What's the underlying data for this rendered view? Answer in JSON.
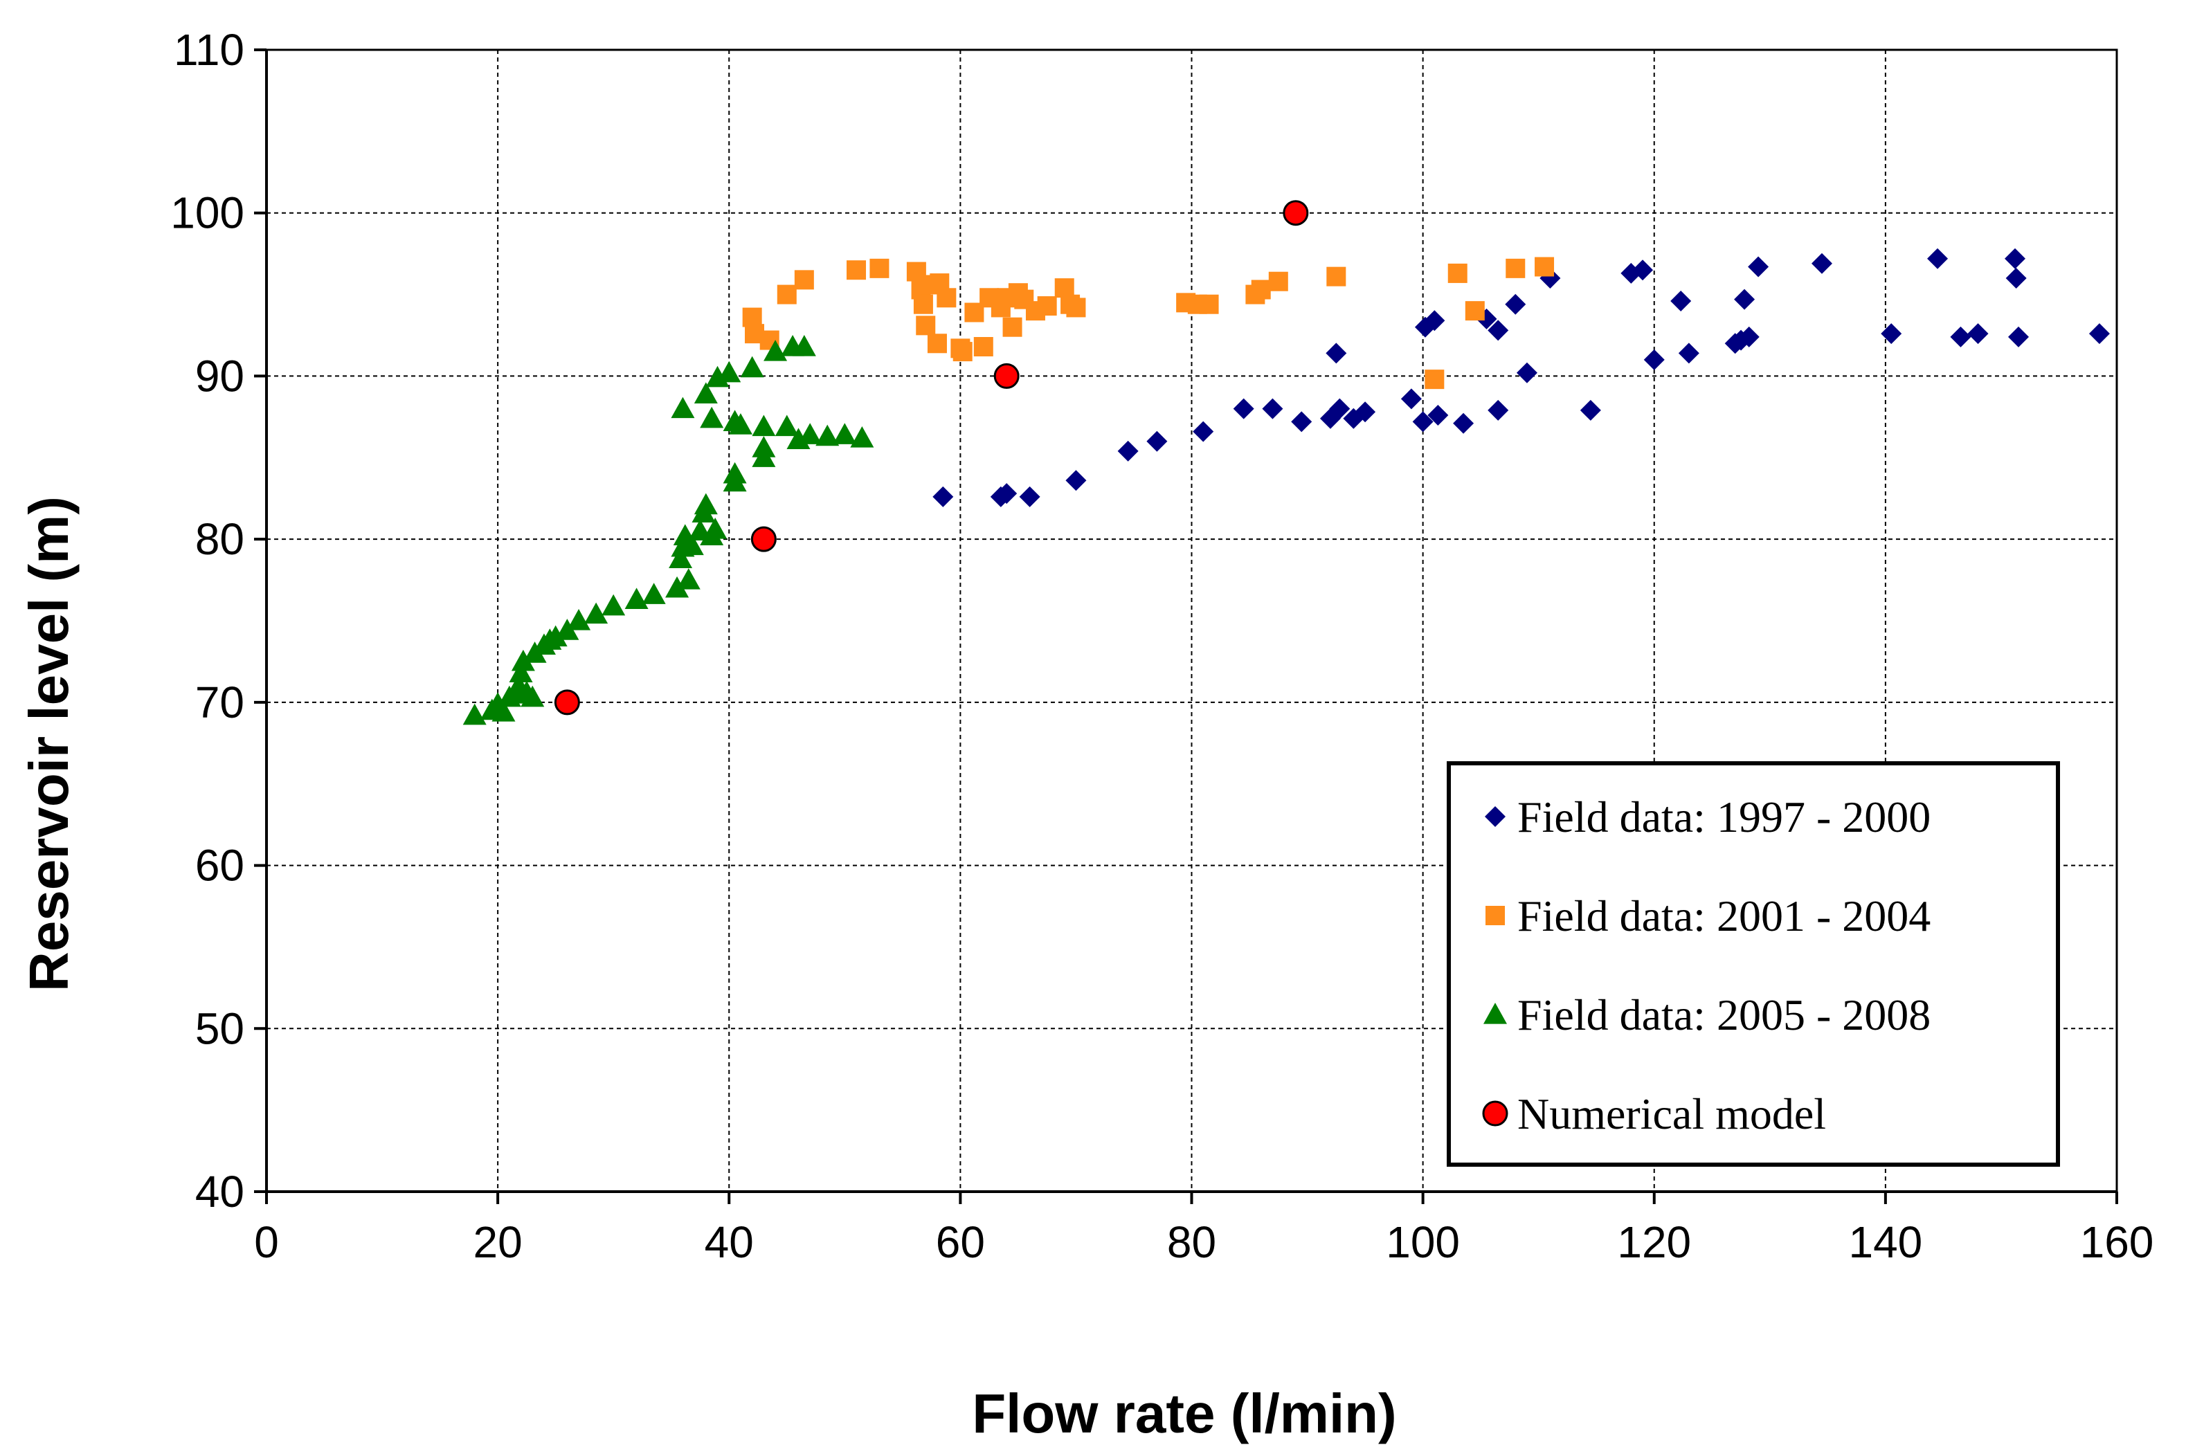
{
  "chart_data": {
    "type": "scatter",
    "xlabel": "Flow rate (l/min)",
    "ylabel": "Reservoir level (m)",
    "xlim": [
      0,
      160
    ],
    "ylim": [
      40,
      110
    ],
    "xticks": [
      0,
      20,
      40,
      60,
      80,
      100,
      120,
      140,
      160
    ],
    "yticks": [
      40,
      50,
      60,
      70,
      80,
      90,
      100,
      110
    ],
    "grid": true,
    "legend_position": "bottom-right",
    "series": [
      {
        "name": "Field data: 1997 - 2000",
        "marker": "diamond",
        "color": "#000080",
        "points": [
          [
            58.5,
            82.6
          ],
          [
            63.5,
            82.6
          ],
          [
            64.0,
            82.8
          ],
          [
            66.0,
            82.6
          ],
          [
            70.0,
            83.6
          ],
          [
            74.5,
            85.4
          ],
          [
            77.0,
            86.0
          ],
          [
            81.0,
            86.6
          ],
          [
            84.5,
            88.0
          ],
          [
            87.0,
            88.0
          ],
          [
            89.5,
            87.2
          ],
          [
            92.0,
            87.4
          ],
          [
            92.5,
            91.4
          ],
          [
            92.8,
            88.0
          ],
          [
            94.0,
            87.4
          ],
          [
            95.0,
            87.8
          ],
          [
            99.0,
            88.6
          ],
          [
            100.0,
            87.2
          ],
          [
            100.2,
            93.0
          ],
          [
            101.0,
            93.4
          ],
          [
            101.3,
            87.6
          ],
          [
            103.5,
            87.1
          ],
          [
            105.5,
            93.5
          ],
          [
            106.5,
            87.9
          ],
          [
            106.5,
            92.8
          ],
          [
            108.0,
            94.4
          ],
          [
            109.0,
            90.2
          ],
          [
            111.0,
            96.0
          ],
          [
            114.5,
            87.9
          ],
          [
            118.0,
            96.3
          ],
          [
            119.0,
            96.5
          ],
          [
            120.0,
            91.0
          ],
          [
            122.3,
            94.6
          ],
          [
            123.0,
            91.4
          ],
          [
            127.0,
            92.0
          ],
          [
            127.5,
            92.2
          ],
          [
            127.8,
            94.7
          ],
          [
            128.2,
            92.4
          ],
          [
            129.0,
            96.7
          ],
          [
            134.5,
            96.9
          ],
          [
            140.5,
            92.6
          ],
          [
            144.5,
            97.2
          ],
          [
            146.5,
            92.4
          ],
          [
            148.0,
            92.6
          ],
          [
            151.2,
            97.2
          ],
          [
            151.3,
            96.0
          ],
          [
            151.5,
            92.4
          ],
          [
            158.5,
            92.6
          ]
        ]
      },
      {
        "name": "Field data: 2001 - 2004",
        "marker": "square",
        "color": "#FF8C1A",
        "points": [
          [
            42.0,
            93.6
          ],
          [
            42.2,
            92.6
          ],
          [
            43.5,
            92.2
          ],
          [
            45.0,
            95.0
          ],
          [
            46.5,
            95.9
          ],
          [
            51.0,
            96.5
          ],
          [
            53.0,
            96.6
          ],
          [
            56.2,
            96.4
          ],
          [
            56.6,
            95.3
          ],
          [
            56.8,
            94.4
          ],
          [
            57.0,
            93.1
          ],
          [
            57.5,
            95.6
          ],
          [
            58.0,
            92.0
          ],
          [
            58.2,
            95.7
          ],
          [
            58.8,
            94.8
          ],
          [
            60.0,
            91.7
          ],
          [
            60.2,
            91.5
          ],
          [
            61.2,
            93.9
          ],
          [
            62.0,
            91.8
          ],
          [
            62.5,
            94.8
          ],
          [
            63.5,
            94.2
          ],
          [
            64.0,
            94.8
          ],
          [
            64.5,
            93.0
          ],
          [
            65.0,
            95.1
          ],
          [
            65.5,
            94.7
          ],
          [
            66.5,
            94.0
          ],
          [
            67.5,
            94.3
          ],
          [
            69.0,
            95.4
          ],
          [
            69.5,
            94.4
          ],
          [
            70.0,
            94.2
          ],
          [
            79.5,
            94.5
          ],
          [
            80.5,
            94.4
          ],
          [
            81.5,
            94.4
          ],
          [
            85.5,
            95.0
          ],
          [
            86.0,
            95.3
          ],
          [
            87.5,
            95.8
          ],
          [
            92.5,
            96.1
          ],
          [
            101.0,
            89.8
          ],
          [
            103.0,
            96.3
          ],
          [
            104.5,
            94.0
          ],
          [
            108.0,
            96.6
          ],
          [
            110.5,
            96.7
          ]
        ]
      },
      {
        "name": "Field data: 2005 - 2008",
        "marker": "triangle",
        "color": "#008000",
        "points": [
          [
            18.0,
            69.2
          ],
          [
            19.5,
            69.5
          ],
          [
            20.0,
            69.9
          ],
          [
            20.5,
            69.4
          ],
          [
            21.0,
            70.3
          ],
          [
            21.5,
            70.5
          ],
          [
            21.8,
            71.0
          ],
          [
            22.0,
            71.8
          ],
          [
            22.2,
            72.5
          ],
          [
            22.5,
            70.6
          ],
          [
            23.0,
            70.3
          ],
          [
            23.2,
            73.0
          ],
          [
            24.0,
            73.5
          ],
          [
            24.5,
            73.8
          ],
          [
            25.0,
            74.0
          ],
          [
            26.0,
            74.4
          ],
          [
            27.0,
            75.0
          ],
          [
            28.5,
            75.4
          ],
          [
            30.0,
            75.9
          ],
          [
            32.0,
            76.3
          ],
          [
            33.5,
            76.6
          ],
          [
            35.5,
            77.0
          ],
          [
            35.8,
            78.8
          ],
          [
            36.0,
            79.5
          ],
          [
            36.2,
            80.2
          ],
          [
            36.5,
            77.5
          ],
          [
            36.8,
            79.6
          ],
          [
            37.5,
            80.5
          ],
          [
            37.8,
            81.6
          ],
          [
            38.0,
            82.1
          ],
          [
            38.5,
            80.2
          ],
          [
            38.8,
            80.6
          ],
          [
            40.5,
            84.0
          ],
          [
            40.5,
            83.5
          ],
          [
            43.0,
            85.0
          ],
          [
            43.0,
            85.6
          ],
          [
            36.0,
            88.0
          ],
          [
            38.0,
            88.9
          ],
          [
            38.5,
            87.4
          ],
          [
            39.0,
            89.9
          ],
          [
            40.0,
            90.2
          ],
          [
            40.5,
            87.2
          ],
          [
            41.0,
            87.0
          ],
          [
            42.0,
            90.5
          ],
          [
            43.0,
            86.9
          ],
          [
            44.0,
            91.5
          ],
          [
            45.0,
            86.9
          ],
          [
            45.5,
            91.8
          ],
          [
            46.0,
            86.1
          ],
          [
            46.5,
            91.8
          ],
          [
            47.0,
            86.4
          ],
          [
            48.5,
            86.3
          ],
          [
            50.0,
            86.4
          ],
          [
            51.5,
            86.2
          ]
        ]
      },
      {
        "name": "Numerical model",
        "marker": "circle",
        "color": "#FF0000",
        "points": [
          [
            26.0,
            70.0
          ],
          [
            43.0,
            80.0
          ],
          [
            64.0,
            90.0
          ],
          [
            89.0,
            100.0
          ]
        ]
      }
    ]
  }
}
